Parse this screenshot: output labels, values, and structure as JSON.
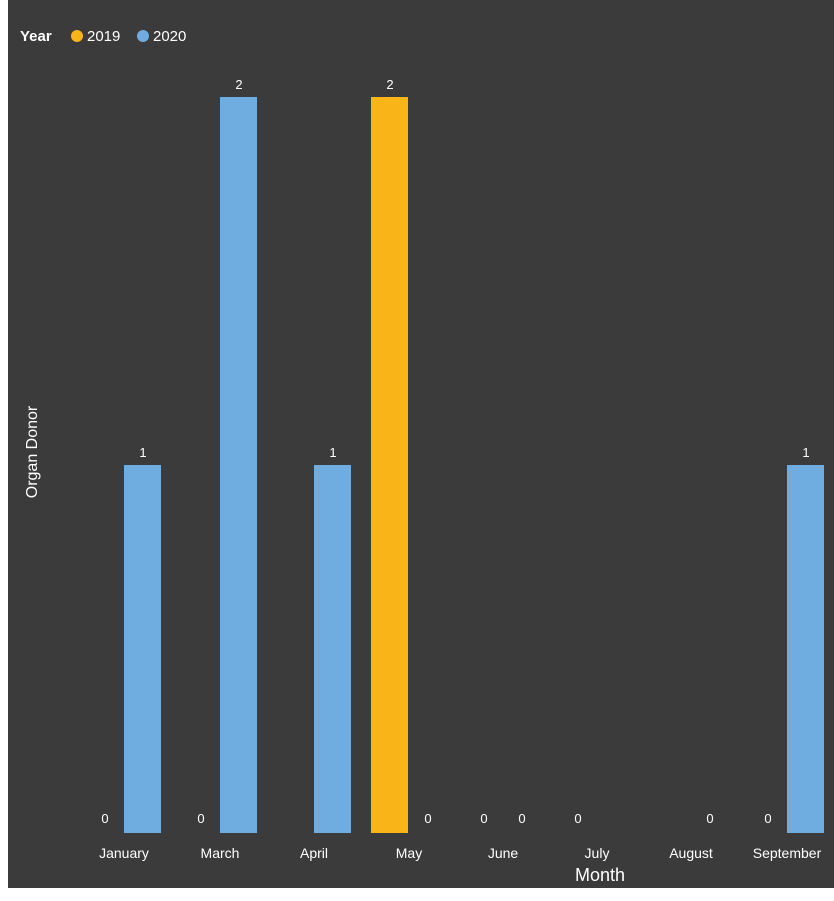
{
  "colors": {
    "panel_bg": "#3b3b3b",
    "page_bg": "#ffffff",
    "series_2019": "#f9b417",
    "series_2020": "#6fade0",
    "text": "#ffffff"
  },
  "legend": {
    "title": "Year",
    "items": [
      {
        "label": "2019",
        "color": "#f9b417"
      },
      {
        "label": "2020",
        "color": "#6fade0"
      }
    ]
  },
  "chart_data": {
    "type": "bar",
    "title": "",
    "xlabel": "Month",
    "ylabel": "Organ Donor",
    "categories": [
      "January",
      "March",
      "April",
      "May",
      "June",
      "July",
      "August",
      "September"
    ],
    "series": [
      {
        "name": "2019",
        "values": [
          0,
          0,
          null,
          2,
          0,
          0,
          null,
          0
        ]
      },
      {
        "name": "2020",
        "values": [
          1,
          2,
          1,
          0,
          0,
          null,
          0,
          1
        ]
      }
    ],
    "ylim": [
      0,
      2
    ],
    "grid": false,
    "legend_position": "top-left",
    "data_labels": true
  }
}
